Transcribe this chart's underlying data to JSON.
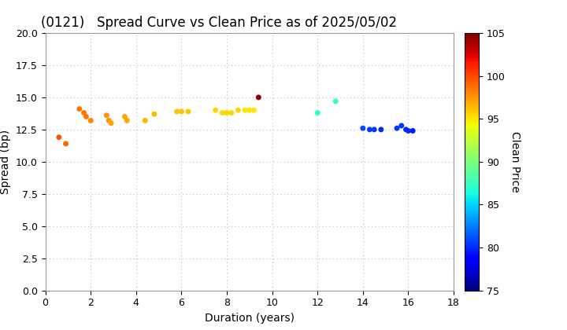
{
  "title": "(0121)   Spread Curve vs Clean Price as of 2025/05/02",
  "xlabel": "Duration (years)",
  "ylabel": "Spread (bp)",
  "colorbar_label": "Clean Price",
  "xlim": [
    0,
    18
  ],
  "ylim": [
    0.0,
    20.0
  ],
  "xticks": [
    0,
    2,
    4,
    6,
    8,
    10,
    12,
    14,
    16,
    18
  ],
  "yticks": [
    0.0,
    2.5,
    5.0,
    7.5,
    10.0,
    12.5,
    15.0,
    17.5,
    20.0
  ],
  "clim": [
    75,
    105
  ],
  "cticks": [
    75,
    80,
    85,
    90,
    95,
    100,
    105
  ],
  "points": [
    {
      "duration": 0.6,
      "spread": 11.9,
      "price": 99.5
    },
    {
      "duration": 0.9,
      "spread": 11.4,
      "price": 99.0
    },
    {
      "duration": 1.5,
      "spread": 14.1,
      "price": 98.5
    },
    {
      "duration": 1.7,
      "spread": 13.8,
      "price": 98.5
    },
    {
      "duration": 1.8,
      "spread": 13.5,
      "price": 98.5
    },
    {
      "duration": 2.0,
      "spread": 13.2,
      "price": 98.0
    },
    {
      "duration": 2.7,
      "spread": 13.6,
      "price": 97.5
    },
    {
      "duration": 2.8,
      "spread": 13.2,
      "price": 97.5
    },
    {
      "duration": 2.9,
      "spread": 13.0,
      "price": 97.0
    },
    {
      "duration": 3.5,
      "spread": 13.5,
      "price": 97.0
    },
    {
      "duration": 3.6,
      "spread": 13.2,
      "price": 97.0
    },
    {
      "duration": 4.4,
      "spread": 13.2,
      "price": 96.5
    },
    {
      "duration": 4.8,
      "spread": 13.7,
      "price": 96.5
    },
    {
      "duration": 5.8,
      "spread": 13.9,
      "price": 96.0
    },
    {
      "duration": 6.0,
      "spread": 13.9,
      "price": 96.0
    },
    {
      "duration": 6.3,
      "spread": 13.9,
      "price": 96.0
    },
    {
      "duration": 7.5,
      "spread": 14.0,
      "price": 95.5
    },
    {
      "duration": 7.8,
      "spread": 13.8,
      "price": 95.5
    },
    {
      "duration": 8.0,
      "spread": 13.8,
      "price": 95.5
    },
    {
      "duration": 8.2,
      "spread": 13.8,
      "price": 95.5
    },
    {
      "duration": 8.5,
      "spread": 14.0,
      "price": 95.5
    },
    {
      "duration": 8.8,
      "spread": 14.0,
      "price": 95.0
    },
    {
      "duration": 9.0,
      "spread": 14.0,
      "price": 95.0
    },
    {
      "duration": 9.2,
      "spread": 14.0,
      "price": 95.0
    },
    {
      "duration": 9.4,
      "spread": 15.0,
      "price": 104.5
    },
    {
      "duration": 12.0,
      "spread": 13.8,
      "price": 87.0
    },
    {
      "duration": 12.8,
      "spread": 14.7,
      "price": 87.5
    },
    {
      "duration": 14.0,
      "spread": 12.6,
      "price": 81.0
    },
    {
      "duration": 14.3,
      "spread": 12.5,
      "price": 80.5
    },
    {
      "duration": 14.5,
      "spread": 12.5,
      "price": 80.5
    },
    {
      "duration": 14.8,
      "spread": 12.5,
      "price": 80.0
    },
    {
      "duration": 15.5,
      "spread": 12.6,
      "price": 80.5
    },
    {
      "duration": 15.7,
      "spread": 12.8,
      "price": 80.5
    },
    {
      "duration": 15.9,
      "spread": 12.5,
      "price": 80.0
    },
    {
      "duration": 16.0,
      "spread": 12.4,
      "price": 80.0
    },
    {
      "duration": 16.2,
      "spread": 12.4,
      "price": 79.5
    }
  ],
  "background_color": "#ffffff",
  "grid_color": "#bbbbbb",
  "title_fontsize": 12,
  "axis_fontsize": 10,
  "tick_fontsize": 9,
  "marker_size": 25
}
